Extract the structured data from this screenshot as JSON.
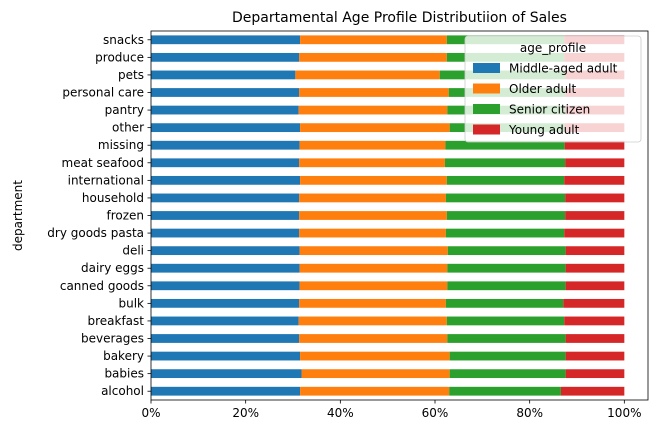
{
  "chart_data": {
    "type": "bar",
    "orientation": "horizontal",
    "stacked": true,
    "title": "Departamental Age Profile Distributiion of Sales",
    "xlabel": "",
    "ylabel": "department",
    "xlim": [
      0,
      1.05
    ],
    "x_tick_values": [
      0,
      0.2,
      0.4,
      0.6,
      0.8,
      1.0
    ],
    "x_tick_labels": [
      "0%",
      "20%",
      "40%",
      "60%",
      "80%",
      "100%"
    ],
    "legend": {
      "title": "age_profile",
      "placement": "top-right"
    },
    "categories": [
      "alcohol",
      "babies",
      "bakery",
      "beverages",
      "breakfast",
      "bulk",
      "canned goods",
      "dairy eggs",
      "deli",
      "dry goods pasta",
      "frozen",
      "household",
      "international",
      "meat seafood",
      "missing",
      "other",
      "pantry",
      "personal care",
      "pets",
      "produce",
      "snacks"
    ],
    "series": [
      {
        "name": "Middle-aged adult",
        "color": "#1f77b4",
        "values": [
          0.315,
          0.318,
          0.315,
          0.313,
          0.312,
          0.313,
          0.314,
          0.314,
          0.314,
          0.313,
          0.313,
          0.313,
          0.315,
          0.313,
          0.314,
          0.315,
          0.312,
          0.313,
          0.305,
          0.313,
          0.315
        ]
      },
      {
        "name": "Older adult",
        "color": "#ff7f0e",
        "values": [
          0.315,
          0.313,
          0.316,
          0.313,
          0.313,
          0.31,
          0.312,
          0.312,
          0.313,
          0.31,
          0.312,
          0.31,
          0.31,
          0.308,
          0.308,
          0.316,
          0.314,
          0.316,
          0.305,
          0.312,
          0.31
        ]
      },
      {
        "name": "Senior citizen",
        "color": "#2ca02c",
        "values": [
          0.236,
          0.245,
          0.245,
          0.25,
          0.248,
          0.248,
          0.25,
          0.25,
          0.249,
          0.25,
          0.25,
          0.252,
          0.248,
          0.254,
          0.252,
          0.243,
          0.249,
          0.246,
          0.265,
          0.248,
          0.248
        ]
      },
      {
        "name": "Young adult",
        "color": "#d62728",
        "values": [
          0.134,
          0.124,
          0.124,
          0.124,
          0.127,
          0.129,
          0.124,
          0.124,
          0.124,
          0.127,
          0.125,
          0.125,
          0.127,
          0.125,
          0.126,
          0.126,
          0.125,
          0.125,
          0.125,
          0.127,
          0.127
        ]
      }
    ]
  }
}
